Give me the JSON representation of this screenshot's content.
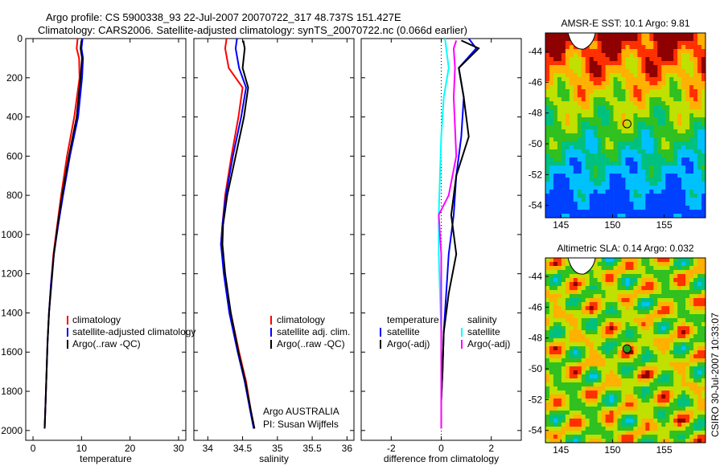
{
  "header": {
    "line1": "Argo profile: CS 5900338_93 22-Jul-2007 20070722_317 48.737S 151.427E",
    "line2": "Climatology: CARS2006. Satellite-adjusted climatology: synTS_20070722.nc (0.066d earlier)"
  },
  "side_label": "CSIRO 30-Jul-2007 10:33:07",
  "colors": {
    "climatology": "#ff0000",
    "satellite": "#0000ff",
    "argo": "#000000",
    "temp_raw": "#ff00ff",
    "sal_raw": "#ff00ff",
    "sat_sal": "#00ffff"
  },
  "chart_data": [
    {
      "type": "line",
      "name": "temperature",
      "xlabel": "temperature",
      "ylabel": "",
      "xlim": [
        -1.5,
        31.5
      ],
      "ylim": [
        0,
        2050
      ],
      "xticks": [
        "0",
        "10",
        "20",
        "30"
      ],
      "xtick_values": [
        0,
        10,
        20,
        30
      ],
      "yticks": [
        "0",
        "200",
        "400",
        "600",
        "800",
        "1000",
        "1200",
        "1400",
        "1600",
        "1800",
        "2000"
      ],
      "ytick_values": [
        0,
        200,
        400,
        600,
        800,
        1000,
        1200,
        1400,
        1600,
        1800,
        2000
      ],
      "series": [
        {
          "name": "climatology",
          "color": "#ff0000",
          "x": [
            9.2,
            9.0,
            9.5,
            9.6,
            8.5,
            7.0,
            5.8,
            5.0,
            4.2,
            3.7,
            3.3,
            3.0,
            2.8,
            2.6,
            2.4
          ],
          "y": [
            0,
            50,
            100,
            200,
            400,
            600,
            800,
            950,
            1100,
            1250,
            1400,
            1550,
            1700,
            1850,
            1990
          ]
        },
        {
          "name": "satellite-adjusted climatology",
          "color": "#0000ff",
          "x": [
            10.2,
            10.0,
            10.3,
            10.1,
            9.3,
            7.6,
            6.2,
            5.2,
            4.3,
            3.7,
            3.3,
            3.0,
            2.8,
            2.6,
            2.4
          ],
          "y": [
            0,
            50,
            100,
            200,
            400,
            600,
            800,
            950,
            1100,
            1250,
            1400,
            1550,
            1700,
            1850,
            1990
          ]
        },
        {
          "name": "Argo(..raw -QC)",
          "color": "#000000",
          "x": [
            10.0,
            9.8,
            10.1,
            9.8,
            9.0,
            7.4,
            6.0,
            5.1,
            4.3,
            3.8,
            3.3,
            3.0,
            2.8,
            2.6,
            2.4
          ],
          "y": [
            10,
            50,
            100,
            200,
            400,
            600,
            800,
            950,
            1100,
            1250,
            1400,
            1550,
            1700,
            1850,
            1990
          ]
        }
      ],
      "legend": [
        "climatology",
        "satellite-adjusted climatology",
        "Argo(..raw -QC)"
      ]
    },
    {
      "type": "line",
      "name": "salinity",
      "xlabel": "salinity",
      "xlim": [
        33.8,
        36.1
      ],
      "ylim": [
        0,
        2050
      ],
      "xticks": [
        "34",
        "34.5",
        "35",
        "35.5",
        "36"
      ],
      "xtick_values": [
        34,
        34.5,
        35,
        35.5,
        36
      ],
      "series": [
        {
          "name": "climatology",
          "color": "#ff0000",
          "x": [
            34.27,
            34.25,
            34.3,
            34.5,
            34.44,
            34.34,
            34.25,
            34.21,
            34.19,
            34.24,
            34.33,
            34.45,
            34.55,
            34.62,
            34.67
          ],
          "y": [
            0,
            50,
            150,
            250,
            400,
            600,
            800,
            950,
            1050,
            1200,
            1400,
            1600,
            1750,
            1900,
            1990
          ]
        },
        {
          "name": "satellite adj. clim.",
          "color": "#0000ff",
          "x": [
            34.42,
            34.4,
            34.45,
            34.55,
            34.48,
            34.36,
            34.26,
            34.21,
            34.19,
            34.23,
            34.31,
            34.43,
            34.53,
            34.61,
            34.66
          ],
          "y": [
            0,
            50,
            150,
            250,
            400,
            600,
            800,
            950,
            1050,
            1200,
            1400,
            1600,
            1750,
            1900,
            1990
          ]
        },
        {
          "name": "Argo(..raw -QC)",
          "color": "#000000",
          "x": [
            34.51,
            34.53,
            34.5,
            34.58,
            34.52,
            34.4,
            34.28,
            34.22,
            34.21,
            34.25,
            34.33,
            34.44,
            34.54,
            34.62,
            34.67
          ],
          "y": [
            10,
            50,
            150,
            250,
            400,
            600,
            800,
            950,
            1050,
            1200,
            1400,
            1600,
            1750,
            1900,
            1990
          ]
        }
      ],
      "legend": [
        "climatology",
        "satellite adj. clim.",
        "Argo(..raw -QC)"
      ],
      "annotation": [
        "Argo AUSTRALIA",
        "PI: Susan Wijffels"
      ]
    },
    {
      "type": "line",
      "name": "difference",
      "xlabel": "difference from climatology",
      "xlim": [
        -3.2,
        3.2
      ],
      "ylim": [
        0,
        2050
      ],
      "xticks": [
        "-2",
        "0",
        "2"
      ],
      "xtick_values": [
        -2,
        0,
        2
      ],
      "series": [
        {
          "name": "temperature satellite",
          "color": "#0000ff",
          "x": [
            1.1,
            1.4,
            0.7,
            0.9,
            0.8,
            0.6,
            0.5,
            0.3,
            0.2,
            0.1,
            0.05,
            0.0,
            0.0
          ],
          "y": [
            0,
            50,
            150,
            300,
            500,
            700,
            900,
            1100,
            1300,
            1500,
            1700,
            1850,
            1990
          ]
        },
        {
          "name": "temperature Argo(-adj)",
          "color": "#000000",
          "x": [
            0.8,
            1.5,
            0.7,
            0.9,
            1.1,
            0.6,
            0.4,
            0.6,
            0.3,
            0.1,
            0.05,
            0.0,
            0.0
          ],
          "y": [
            10,
            50,
            150,
            300,
            500,
            700,
            900,
            1100,
            1300,
            1500,
            1700,
            1850,
            1990
          ]
        },
        {
          "name": "salinity satellite",
          "color": "#00ffff",
          "x": [
            0.15,
            0.2,
            0.3,
            0.1,
            0.0,
            -0.05,
            -0.1,
            -0.1,
            -0.05,
            0.0,
            0.0,
            0.0
          ],
          "y": [
            0,
            50,
            150,
            300,
            500,
            700,
            900,
            1100,
            1300,
            1500,
            1700,
            1990
          ]
        },
        {
          "name": "salinity Argo(-adj)",
          "color": "#ff00ff",
          "x": [
            0.6,
            0.5,
            0.55,
            0.5,
            0.6,
            0.3,
            -0.1,
            0.0,
            0.0,
            0.0,
            0.0
          ],
          "y": [
            10,
            50,
            150,
            300,
            600,
            800,
            900,
            1100,
            1400,
            1700,
            1990
          ]
        }
      ],
      "legend_headers": [
        "temperature",
        "salinity"
      ],
      "legend_left": [
        "satellite",
        "Argo(-adj)"
      ],
      "legend_right": [
        "satellite",
        "Argo(-adj)"
      ]
    }
  ],
  "maps": [
    {
      "name": "sst-map",
      "title": "AMSR-E SST: 10.1  Argo: 9.81",
      "xticks": [
        "145",
        "150",
        "155"
      ],
      "yticks": [
        "-44",
        "-46",
        "-48",
        "-50",
        "-52",
        "-54"
      ],
      "lon_range": [
        143.5,
        159
      ],
      "lat_range": [
        -54.8,
        -42.8
      ],
      "marker_lon": 151.4,
      "marker_lat": -48.7,
      "marker": "open-circle"
    },
    {
      "name": "sla-map",
      "title": "Altimetric SLA: 0.14  Argo: 0.032",
      "xticks": [
        "145",
        "150",
        "155"
      ],
      "yticks": [
        "-44",
        "-46",
        "-48",
        "-50",
        "-52",
        "-54"
      ],
      "lon_range": [
        143.5,
        159
      ],
      "lat_range": [
        -54.8,
        -42.8
      ],
      "marker_lon": 151.4,
      "marker_lat": -48.7,
      "marker": "filled-circle"
    }
  ]
}
